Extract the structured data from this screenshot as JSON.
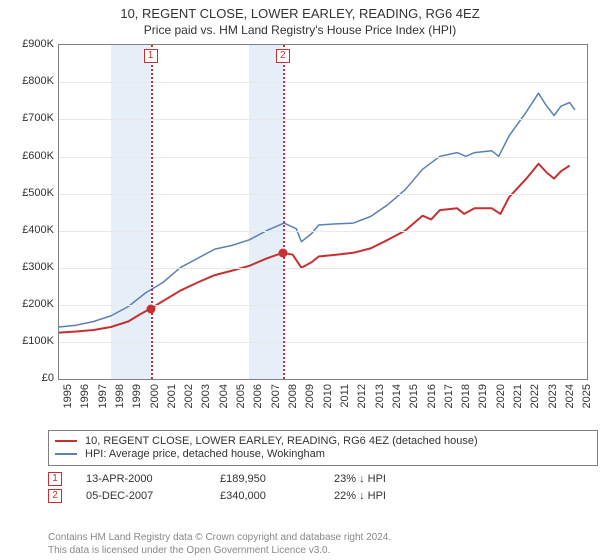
{
  "titles": {
    "main": "10, REGENT CLOSE, LOWER EARLEY, READING, RG6 4EZ",
    "sub": "Price paid vs. HM Land Registry's House Price Index (HPI)"
  },
  "chart": {
    "type": "line",
    "background_color": "#ffffff",
    "border_color": "#808080",
    "grid_color": "#e8e8e8",
    "ylim": [
      0,
      900000
    ],
    "ytick_step": 100000,
    "ytick_labels": [
      "£0",
      "£100K",
      "£200K",
      "£300K",
      "£400K",
      "£500K",
      "£600K",
      "£700K",
      "£800K",
      "£900K"
    ],
    "xlim": [
      1995,
      2025.5
    ],
    "xtick_step": 1,
    "xtick_labels": [
      "1995",
      "1996",
      "1997",
      "1998",
      "1999",
      "2000",
      "2001",
      "2002",
      "2003",
      "2004",
      "2005",
      "2006",
      "2007",
      "2008",
      "2009",
      "2010",
      "2011",
      "2012",
      "2013",
      "2014",
      "2015",
      "2016",
      "2017",
      "2018",
      "2019",
      "2020",
      "2021",
      "2022",
      "2023",
      "2024",
      "2025"
    ],
    "label_fontsize": 11,
    "bands": [
      {
        "from_x": 1998,
        "to_x": 2000.29,
        "color": "#e6eef8"
      },
      {
        "from_x": 2006,
        "to_x": 2007.93,
        "color": "#e6eef8"
      }
    ],
    "vlines": [
      {
        "x": 2000.29,
        "color": "#c73030",
        "style": "dotted",
        "marker_label": "1",
        "marker_y": 870000
      },
      {
        "x": 2007.93,
        "color": "#c73030",
        "style": "dotted",
        "marker_label": "2",
        "marker_y": 870000
      }
    ],
    "series": [
      {
        "name": "price_paid",
        "color": "#c73030",
        "width": 2,
        "points": [
          [
            1995.0,
            125000
          ],
          [
            1996.0,
            128000
          ],
          [
            1997.0,
            132000
          ],
          [
            1998.0,
            140000
          ],
          [
            1999.0,
            155000
          ],
          [
            1999.7,
            175000
          ],
          [
            2000.29,
            189950
          ],
          [
            2001.0,
            210000
          ],
          [
            2002.0,
            238000
          ],
          [
            2003.0,
            260000
          ],
          [
            2004.0,
            280000
          ],
          [
            2005.0,
            292000
          ],
          [
            2006.0,
            305000
          ],
          [
            2007.0,
            325000
          ],
          [
            2007.93,
            340000
          ],
          [
            2008.5,
            335000
          ],
          [
            2009.0,
            300000
          ],
          [
            2009.6,
            315000
          ],
          [
            2010.0,
            330000
          ],
          [
            2011.0,
            335000
          ],
          [
            2012.0,
            340000
          ],
          [
            2013.0,
            352000
          ],
          [
            2014.0,
            375000
          ],
          [
            2015.0,
            400000
          ],
          [
            2016.0,
            440000
          ],
          [
            2016.5,
            430000
          ],
          [
            2017.0,
            455000
          ],
          [
            2018.0,
            460000
          ],
          [
            2018.4,
            445000
          ],
          [
            2019.0,
            460000
          ],
          [
            2020.0,
            460000
          ],
          [
            2020.5,
            445000
          ],
          [
            2021.0,
            490000
          ],
          [
            2022.0,
            540000
          ],
          [
            2022.7,
            580000
          ],
          [
            2023.2,
            555000
          ],
          [
            2023.6,
            540000
          ],
          [
            2024.0,
            560000
          ],
          [
            2024.5,
            575000
          ]
        ],
        "markers": [
          {
            "x": 2000.29,
            "y": 189950
          },
          {
            "x": 2007.93,
            "y": 340000
          }
        ]
      },
      {
        "name": "hpi",
        "color": "#5b7fb8",
        "width": 1.5,
        "points": [
          [
            1995.0,
            140000
          ],
          [
            1996.0,
            145000
          ],
          [
            1997.0,
            155000
          ],
          [
            1998.0,
            170000
          ],
          [
            1999.0,
            195000
          ],
          [
            2000.0,
            232000
          ],
          [
            2001.0,
            260000
          ],
          [
            2002.0,
            300000
          ],
          [
            2003.0,
            325000
          ],
          [
            2004.0,
            350000
          ],
          [
            2005.0,
            360000
          ],
          [
            2006.0,
            375000
          ],
          [
            2007.0,
            400000
          ],
          [
            2008.0,
            420000
          ],
          [
            2008.7,
            405000
          ],
          [
            2009.0,
            370000
          ],
          [
            2009.6,
            392000
          ],
          [
            2010.0,
            415000
          ],
          [
            2011.0,
            418000
          ],
          [
            2012.0,
            420000
          ],
          [
            2013.0,
            438000
          ],
          [
            2014.0,
            470000
          ],
          [
            2015.0,
            510000
          ],
          [
            2016.0,
            565000
          ],
          [
            2017.0,
            600000
          ],
          [
            2018.0,
            610000
          ],
          [
            2018.5,
            600000
          ],
          [
            2019.0,
            610000
          ],
          [
            2020.0,
            615000
          ],
          [
            2020.4,
            600000
          ],
          [
            2021.0,
            655000
          ],
          [
            2022.0,
            720000
          ],
          [
            2022.7,
            770000
          ],
          [
            2023.1,
            740000
          ],
          [
            2023.6,
            710000
          ],
          [
            2024.0,
            735000
          ],
          [
            2024.5,
            745000
          ],
          [
            2024.8,
            725000
          ]
        ]
      }
    ]
  },
  "legend": {
    "items": [
      {
        "color": "#c73030",
        "label": "10, REGENT CLOSE, LOWER EARLEY, READING, RG6 4EZ (detached house)"
      },
      {
        "color": "#5b7fb8",
        "label": "HPI: Average price, detached house, Wokingham"
      }
    ]
  },
  "annotations": [
    {
      "marker": "1",
      "date": "13-APR-2000",
      "price": "£189,950",
      "delta": "23% ↓ HPI"
    },
    {
      "marker": "2",
      "date": "05-DEC-2007",
      "price": "£340,000",
      "delta": "22% ↓ HPI"
    }
  ],
  "footer": {
    "line1": "Contains HM Land Registry data © Crown copyright and database right 2024.",
    "line2": "This data is licensed under the Open Government Licence v3.0."
  }
}
